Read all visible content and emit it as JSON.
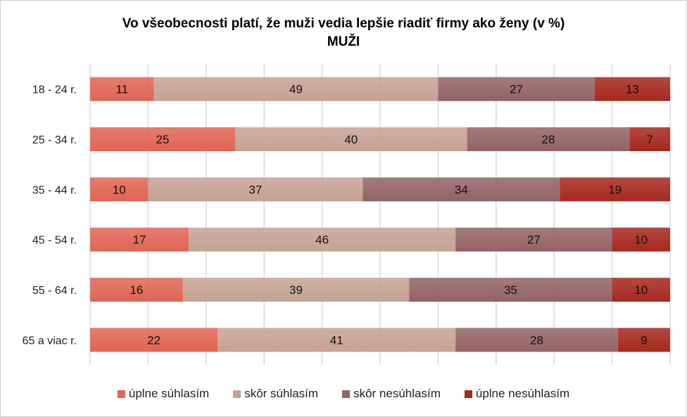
{
  "chart_data": {
    "type": "bar",
    "orientation": "horizontal",
    "stacked": true,
    "title": "Vo všeobecnosti platí, že muži vedia lepšie riadiť firmy ako ženy (v %)",
    "subtitle": "MUŽI",
    "categories": [
      "18 - 24 r.",
      "25 - 34 r.",
      "35 - 44 r.",
      "45 - 54 r.",
      "55 - 64 r.",
      "65 a viac r."
    ],
    "series": [
      {
        "name": "úplne súhlasím",
        "color": "#e06554",
        "values": [
          11,
          25,
          10,
          17,
          16,
          22
        ]
      },
      {
        "name": "skôr súhlasím",
        "color": "#c6a293",
        "values": [
          49,
          40,
          37,
          46,
          39,
          41
        ]
      },
      {
        "name": "skôr nesúhlasím",
        "color": "#936364",
        "values": [
          27,
          28,
          34,
          27,
          35,
          28
        ]
      },
      {
        "name": "úplne nesúhlasím",
        "color": "#a6281d",
        "values": [
          13,
          7,
          19,
          10,
          10,
          9
        ]
      }
    ],
    "xlim": [
      0,
      100
    ],
    "grid": true,
    "legend": "bottom"
  }
}
